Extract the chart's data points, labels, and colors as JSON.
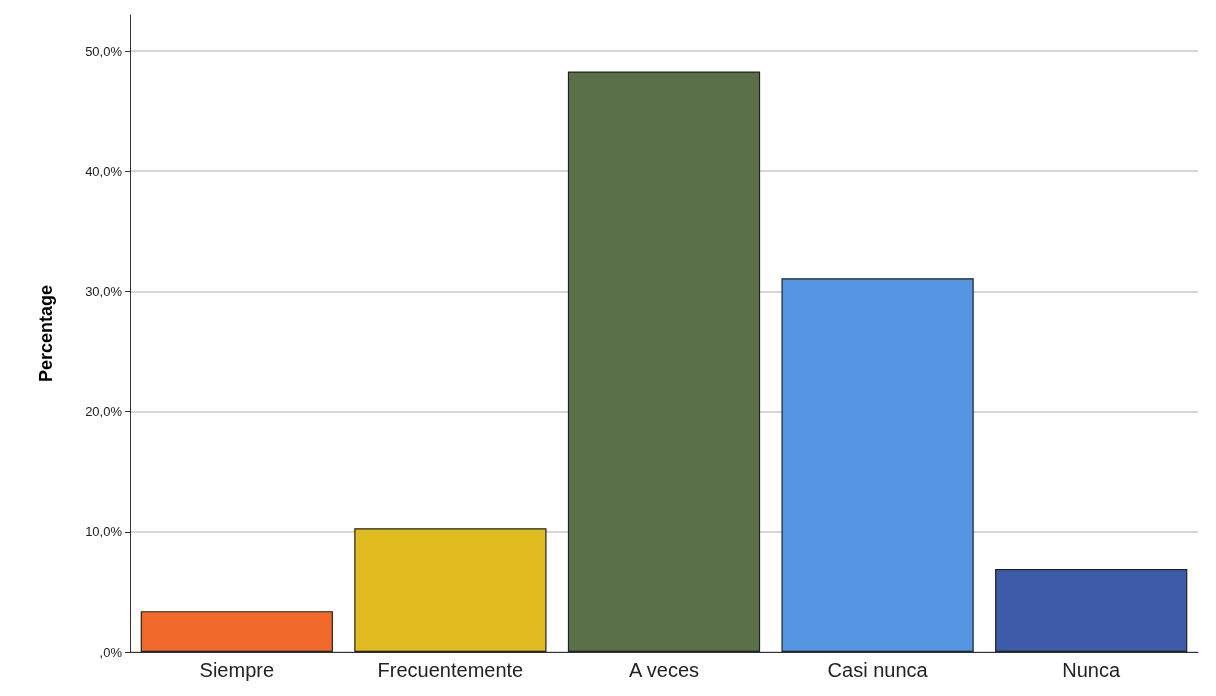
{
  "chart_data": {
    "type": "bar",
    "ylabel": "Percentage",
    "categories": [
      "Siempre",
      "Frecuentemente",
      "A veces",
      "Casi nunca",
      "Nunca"
    ],
    "values": [
      3.4,
      10.3,
      48.3,
      31.1,
      6.9
    ],
    "colors": [
      "#f26a2b",
      "#e0bb1f",
      "#5a7049",
      "#5596e3",
      "#3d5ba8"
    ],
    "ylim": [
      0,
      53
    ],
    "yticks": [
      {
        "value": 0,
        "label": ",0%"
      },
      {
        "value": 10,
        "label": "10,0%"
      },
      {
        "value": 20,
        "label": "20,0%"
      },
      {
        "value": 30,
        "label": "30,0%"
      },
      {
        "value": 40,
        "label": "40,0%"
      },
      {
        "value": 50,
        "label": "50,0%"
      }
    ],
    "grid": "y"
  }
}
